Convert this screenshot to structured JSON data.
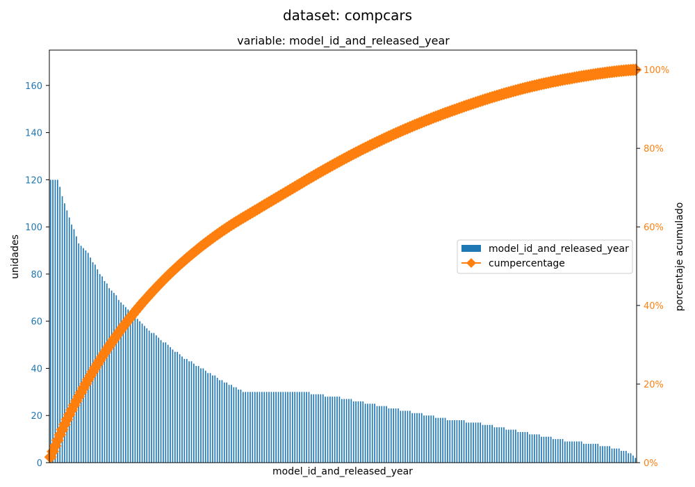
{
  "chart_data": {
    "type": "bar",
    "suptitle": "dataset: compcars",
    "title": "variable: model_id_and_released_year",
    "xlabel": "model_id_and_released_year",
    "ylabel": "unidades",
    "y2label": "porcentaje acumulado",
    "ylim": [
      0,
      175
    ],
    "y2lim": [
      0,
      105
    ],
    "yticks": [
      "0",
      "20",
      "40",
      "60",
      "80",
      "100",
      "120",
      "140",
      "160"
    ],
    "y2ticks": [
      "0%",
      "20%",
      "40%",
      "60%",
      "80%",
      "100%"
    ],
    "grid": false,
    "legend_position": "center-right",
    "num_categories": 250,
    "series": [
      {
        "name": "model_id_and_released_year",
        "kind": "bar",
        "color": "#1f77b4",
        "profile": [
          [
            0,
            120
          ],
          [
            3,
            120
          ],
          [
            5,
            113
          ],
          [
            8,
            104
          ],
          [
            12,
            93
          ],
          [
            16,
            89
          ],
          [
            21,
            80
          ],
          [
            26,
            73
          ],
          [
            31,
            67
          ],
          [
            36,
            62
          ],
          [
            41,
            57
          ],
          [
            46,
            53
          ],
          [
            51,
            49
          ],
          [
            56,
            45
          ],
          [
            61,
            42
          ],
          [
            66,
            39
          ],
          [
            71,
            36
          ],
          [
            76,
            33
          ],
          [
            80,
            31
          ],
          [
            82,
            30
          ],
          [
            109,
            30
          ],
          [
            111,
            29
          ],
          [
            121,
            28
          ],
          [
            131,
            26
          ],
          [
            141,
            24
          ],
          [
            151,
            22
          ],
          [
            161,
            20
          ],
          [
            171,
            18
          ],
          [
            181,
            17
          ],
          [
            191,
            15
          ],
          [
            201,
            13
          ],
          [
            211,
            11
          ],
          [
            221,
            9
          ],
          [
            231,
            8
          ],
          [
            241,
            6
          ],
          [
            247,
            4
          ],
          [
            250,
            1
          ]
        ]
      },
      {
        "name": "cumpercentage",
        "kind": "line",
        "color": "#ff7f0e",
        "marker": "diamond",
        "y_axis": "right"
      }
    ]
  }
}
